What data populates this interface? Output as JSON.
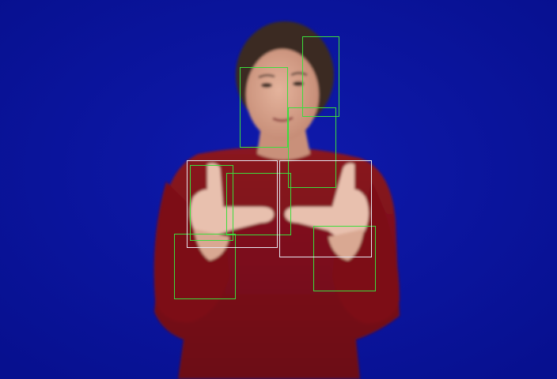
{
  "scene": {
    "background_color": "#0a13a0",
    "subject": "person-signing",
    "shirt_color": "#7a1018",
    "skin_color": "#d9a58e",
    "hair_color": "#3a2a22"
  },
  "overlay": {
    "green_box_color": "#3ddc3d",
    "white_box_color": "#e6e6f0",
    "green_box_count": 7,
    "white_box_count": 2
  }
}
